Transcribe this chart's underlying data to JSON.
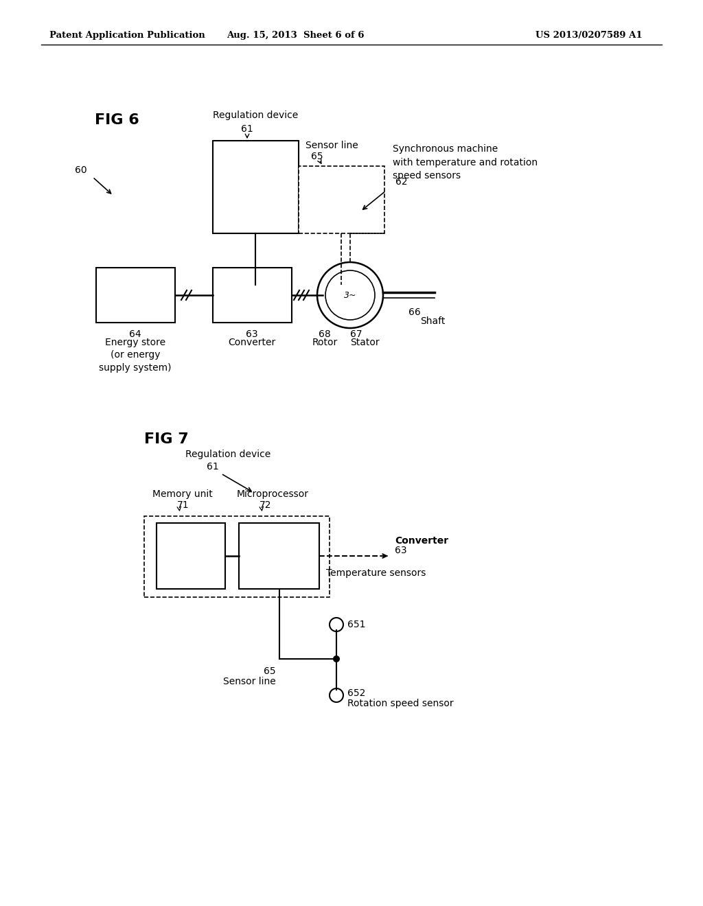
{
  "bg_color": "#ffffff",
  "header_left": "Patent Application Publication",
  "header_mid": "Aug. 15, 2013  Sheet 6 of 6",
  "header_right": "US 2013/0207589 A1",
  "fig6_label": "FIG 6",
  "fig7_label": "FIG 7",
  "annotation_60": "60",
  "reg_device_label_fig6": "Regulation device",
  "reg_device_num_fig6": "61",
  "sensor_line_label_fig6": "Sensor line",
  "sensor_line_num_fig6": "65",
  "sync_machine_label": "Synchronous machine\nwith temperature and rotation\nspeed sensors",
  "sync_machine_num": "62",
  "energy_store_label": "Energy store\n(or energy\nsupply system)",
  "energy_store_num": "64",
  "converter_label_fig6": "Converter",
  "converter_num_fig6": "63",
  "rotor_label": "Rotor",
  "rotor_num": "68",
  "stator_label": "Stator",
  "stator_num": "67",
  "shaft_label": "Shaft",
  "shaft_num": "66",
  "reg_device_label_fig7": "Regulation device",
  "reg_device_num_fig7": "61",
  "memory_unit_label": "Memory unit",
  "memory_unit_num": "71",
  "microprocessor_label": "Microprocessor",
  "microprocessor_num": "72",
  "converter_label_fig7": "Converter",
  "converter_num_fig7": "63",
  "temp_sensors_label": "Temperature sensors",
  "temp_sensors_num": "651",
  "sensor_line_label_fig7": "Sensor line",
  "sensor_line_num_fig7": "65",
  "rot_speed_label": "Rotation speed sensor",
  "rot_speed_num": "652"
}
